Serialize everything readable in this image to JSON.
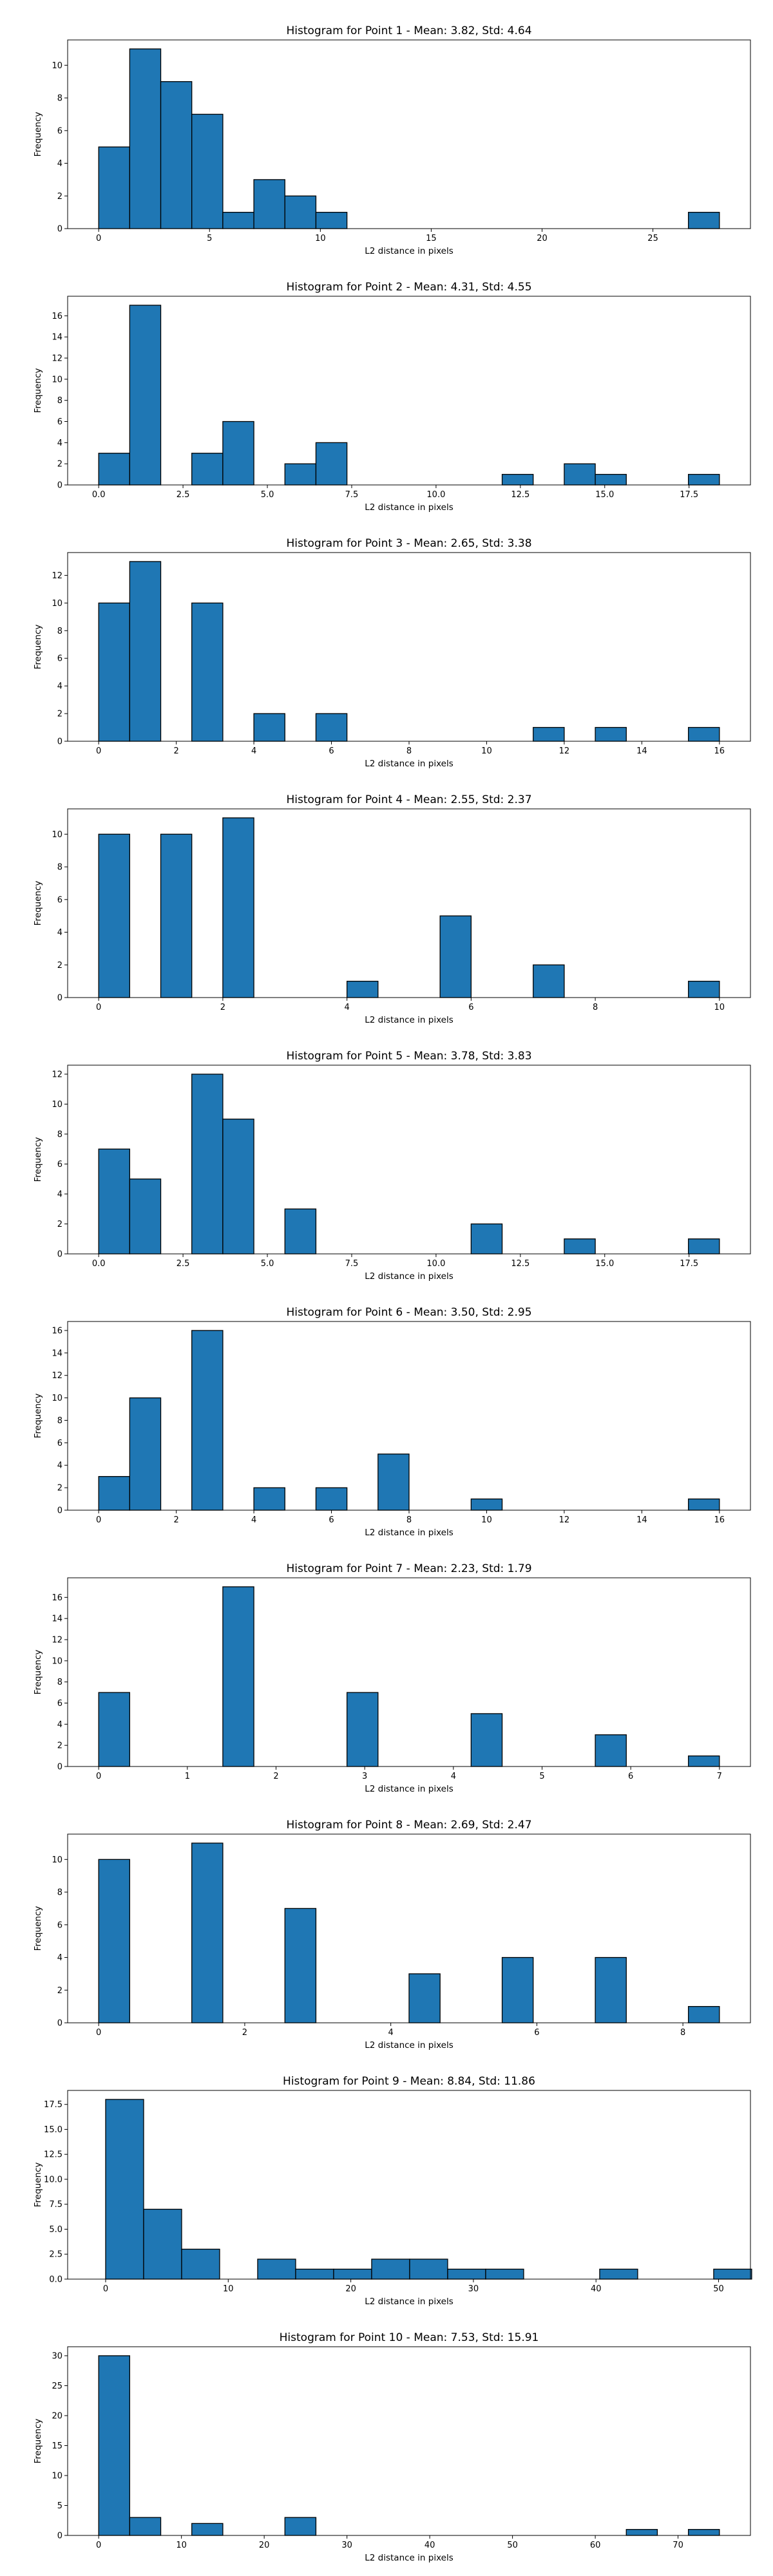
{
  "chart_data": [
    {
      "type": "bar",
      "title": "Histogram for Point 1 - Mean: 3.82, Std: 4.64",
      "xlabel": "L2 distance in pixels",
      "ylabel": "Frequency",
      "bin_width": 1.4,
      "xlim": [
        -1.4,
        29.4
      ],
      "ylim": [
        0,
        11.55
      ],
      "xticks": [
        0,
        5,
        10,
        15,
        20,
        25
      ],
      "yticks": [
        0,
        2,
        4,
        6,
        8,
        10
      ],
      "bars": [
        [
          0,
          5
        ],
        [
          1.4,
          11
        ],
        [
          2.8,
          9
        ],
        [
          4.2,
          7
        ],
        [
          5.6,
          1
        ],
        [
          7.0,
          3
        ],
        [
          8.4,
          2
        ],
        [
          9.8,
          1
        ],
        [
          26.6,
          1
        ]
      ]
    },
    {
      "type": "bar",
      "title": "Histogram for Point 2 - Mean: 4.31, Std: 4.55",
      "xlabel": "L2 distance in pixels",
      "ylabel": "Frequency",
      "bin_width": 0.92,
      "xlim": [
        -0.92,
        19.32
      ],
      "ylim": [
        0,
        17.85
      ],
      "xticks": [
        0.0,
        2.5,
        5.0,
        7.5,
        10.0,
        12.5,
        15.0,
        17.5
      ],
      "yticks": [
        0,
        2,
        4,
        6,
        8,
        10,
        12,
        14,
        16
      ],
      "bars": [
        [
          0,
          3
        ],
        [
          0.92,
          17
        ],
        [
          2.76,
          3
        ],
        [
          3.68,
          6
        ],
        [
          5.52,
          2
        ],
        [
          6.44,
          4
        ],
        [
          11.96,
          1
        ],
        [
          13.8,
          2
        ],
        [
          14.72,
          1
        ],
        [
          17.48,
          1
        ]
      ]
    },
    {
      "type": "bar",
      "title": "Histogram for Point 3 - Mean: 2.65, Std: 3.38",
      "xlabel": "L2 distance in pixels",
      "ylabel": "Frequency",
      "bin_width": 0.8,
      "xlim": [
        -0.8,
        16.8
      ],
      "ylim": [
        0,
        13.65
      ],
      "xticks": [
        0,
        2,
        4,
        6,
        8,
        10,
        12,
        14,
        16
      ],
      "yticks": [
        0,
        2,
        4,
        6,
        8,
        10,
        12
      ],
      "bars": [
        [
          0,
          10
        ],
        [
          0.8,
          13
        ],
        [
          2.4,
          10
        ],
        [
          4.0,
          2
        ],
        [
          5.6,
          2
        ],
        [
          11.2,
          1
        ],
        [
          12.8,
          1
        ],
        [
          15.2,
          1
        ]
      ]
    },
    {
      "type": "bar",
      "title": "Histogram for Point 4 - Mean: 2.55, Std: 2.37",
      "xlabel": "L2 distance in pixels",
      "ylabel": "Frequency",
      "bin_width": 0.5,
      "xlim": [
        -0.5,
        10.5
      ],
      "ylim": [
        0,
        11.55
      ],
      "xticks": [
        0,
        2,
        4,
        6,
        8,
        10
      ],
      "yticks": [
        0,
        2,
        4,
        6,
        8,
        10
      ],
      "bars": [
        [
          0,
          10
        ],
        [
          1.0,
          10
        ],
        [
          2.0,
          11
        ],
        [
          4.0,
          1
        ],
        [
          5.5,
          5
        ],
        [
          7.0,
          2
        ],
        [
          9.5,
          1
        ]
      ]
    },
    {
      "type": "bar",
      "title": "Histogram for Point 5 - Mean: 3.78, Std: 3.83",
      "xlabel": "L2 distance in pixels",
      "ylabel": "Frequency",
      "bin_width": 0.92,
      "xlim": [
        -0.92,
        19.32
      ],
      "ylim": [
        0,
        12.6
      ],
      "xticks": [
        0.0,
        2.5,
        5.0,
        7.5,
        10.0,
        12.5,
        15.0,
        17.5
      ],
      "yticks": [
        0,
        2,
        4,
        6,
        8,
        10,
        12
      ],
      "bars": [
        [
          0,
          7
        ],
        [
          0.92,
          5
        ],
        [
          2.76,
          12
        ],
        [
          3.68,
          9
        ],
        [
          5.52,
          3
        ],
        [
          11.04,
          2
        ],
        [
          13.8,
          1
        ],
        [
          17.48,
          1
        ]
      ]
    },
    {
      "type": "bar",
      "title": "Histogram for Point 6 - Mean: 3.50, Std: 2.95",
      "xlabel": "L2 distance in pixels",
      "ylabel": "Frequency",
      "bin_width": 0.8,
      "xlim": [
        -0.8,
        16.8
      ],
      "ylim": [
        0,
        16.8
      ],
      "xticks": [
        0,
        2,
        4,
        6,
        8,
        10,
        12,
        14,
        16
      ],
      "yticks": [
        0,
        2,
        4,
        6,
        8,
        10,
        12,
        14,
        16
      ],
      "bars": [
        [
          0,
          3
        ],
        [
          0.8,
          10
        ],
        [
          2.4,
          16
        ],
        [
          4.0,
          2
        ],
        [
          5.6,
          2
        ],
        [
          7.2,
          5
        ],
        [
          9.6,
          1
        ],
        [
          15.2,
          1
        ]
      ]
    },
    {
      "type": "bar",
      "title": "Histogram for Point 7 - Mean: 2.23, Std: 1.79",
      "xlabel": "L2 distance in pixels",
      "ylabel": "Frequency",
      "bin_width": 0.35,
      "xlim": [
        -0.35,
        7.35
      ],
      "ylim": [
        0,
        17.85
      ],
      "xticks": [
        0,
        1,
        2,
        3,
        4,
        5,
        6,
        7
      ],
      "yticks": [
        0,
        2,
        4,
        6,
        8,
        10,
        12,
        14,
        16
      ],
      "bars": [
        [
          0,
          7
        ],
        [
          1.4,
          17
        ],
        [
          2.8,
          7
        ],
        [
          4.2,
          5
        ],
        [
          5.6,
          3
        ],
        [
          6.65,
          1
        ]
      ]
    },
    {
      "type": "bar",
      "title": "Histogram for Point 8 - Mean: 2.69, Std: 2.47",
      "xlabel": "L2 distance in pixels",
      "ylabel": "Frequency",
      "bin_width": 0.425,
      "xlim": [
        -0.425,
        8.925
      ],
      "ylim": [
        0,
        11.55
      ],
      "xticks": [
        0,
        2,
        4,
        6,
        8
      ],
      "yticks": [
        0,
        2,
        4,
        6,
        8,
        10
      ],
      "bars": [
        [
          0,
          10
        ],
        [
          1.275,
          11
        ],
        [
          2.55,
          7
        ],
        [
          4.25,
          3
        ],
        [
          5.525,
          4
        ],
        [
          6.8,
          4
        ],
        [
          8.075,
          1
        ]
      ]
    },
    {
      "type": "bar",
      "title": "Histogram for Point 9 - Mean: 8.84, Std: 11.86",
      "xlabel": "L2 distance in pixels",
      "ylabel": "Frequency",
      "bin_width": 3.1,
      "xlim": [
        -3.1,
        52.6
      ],
      "ylim": [
        0,
        18.9
      ],
      "xticks": [
        0,
        10,
        20,
        30,
        40,
        50
      ],
      "yticks": [
        0.0,
        2.5,
        5.0,
        7.5,
        10.0,
        12.5,
        15.0,
        17.5
      ],
      "bars": [
        [
          0,
          18
        ],
        [
          3.1,
          7
        ],
        [
          6.2,
          3
        ],
        [
          12.4,
          2
        ],
        [
          15.5,
          1
        ],
        [
          18.6,
          1
        ],
        [
          21.7,
          2
        ],
        [
          24.8,
          2
        ],
        [
          27.9,
          1
        ],
        [
          31.0,
          1
        ],
        [
          40.3,
          1
        ],
        [
          49.6,
          1
        ]
      ]
    },
    {
      "type": "bar",
      "title": "Histogram for Point 10 - Mean: 7.53, Std: 15.91",
      "xlabel": "L2 distance in pixels",
      "ylabel": "Frequency",
      "bin_width": 3.75,
      "xlim": [
        -3.75,
        78.75
      ],
      "ylim": [
        0,
        31.5
      ],
      "xticks": [
        0,
        10,
        20,
        30,
        40,
        50,
        60,
        70
      ],
      "yticks": [
        0,
        5,
        10,
        15,
        20,
        25,
        30
      ],
      "bars": [
        [
          0,
          30
        ],
        [
          3.75,
          3
        ],
        [
          11.25,
          2
        ],
        [
          22.5,
          3
        ],
        [
          63.75,
          1
        ],
        [
          71.25,
          1
        ]
      ]
    }
  ]
}
